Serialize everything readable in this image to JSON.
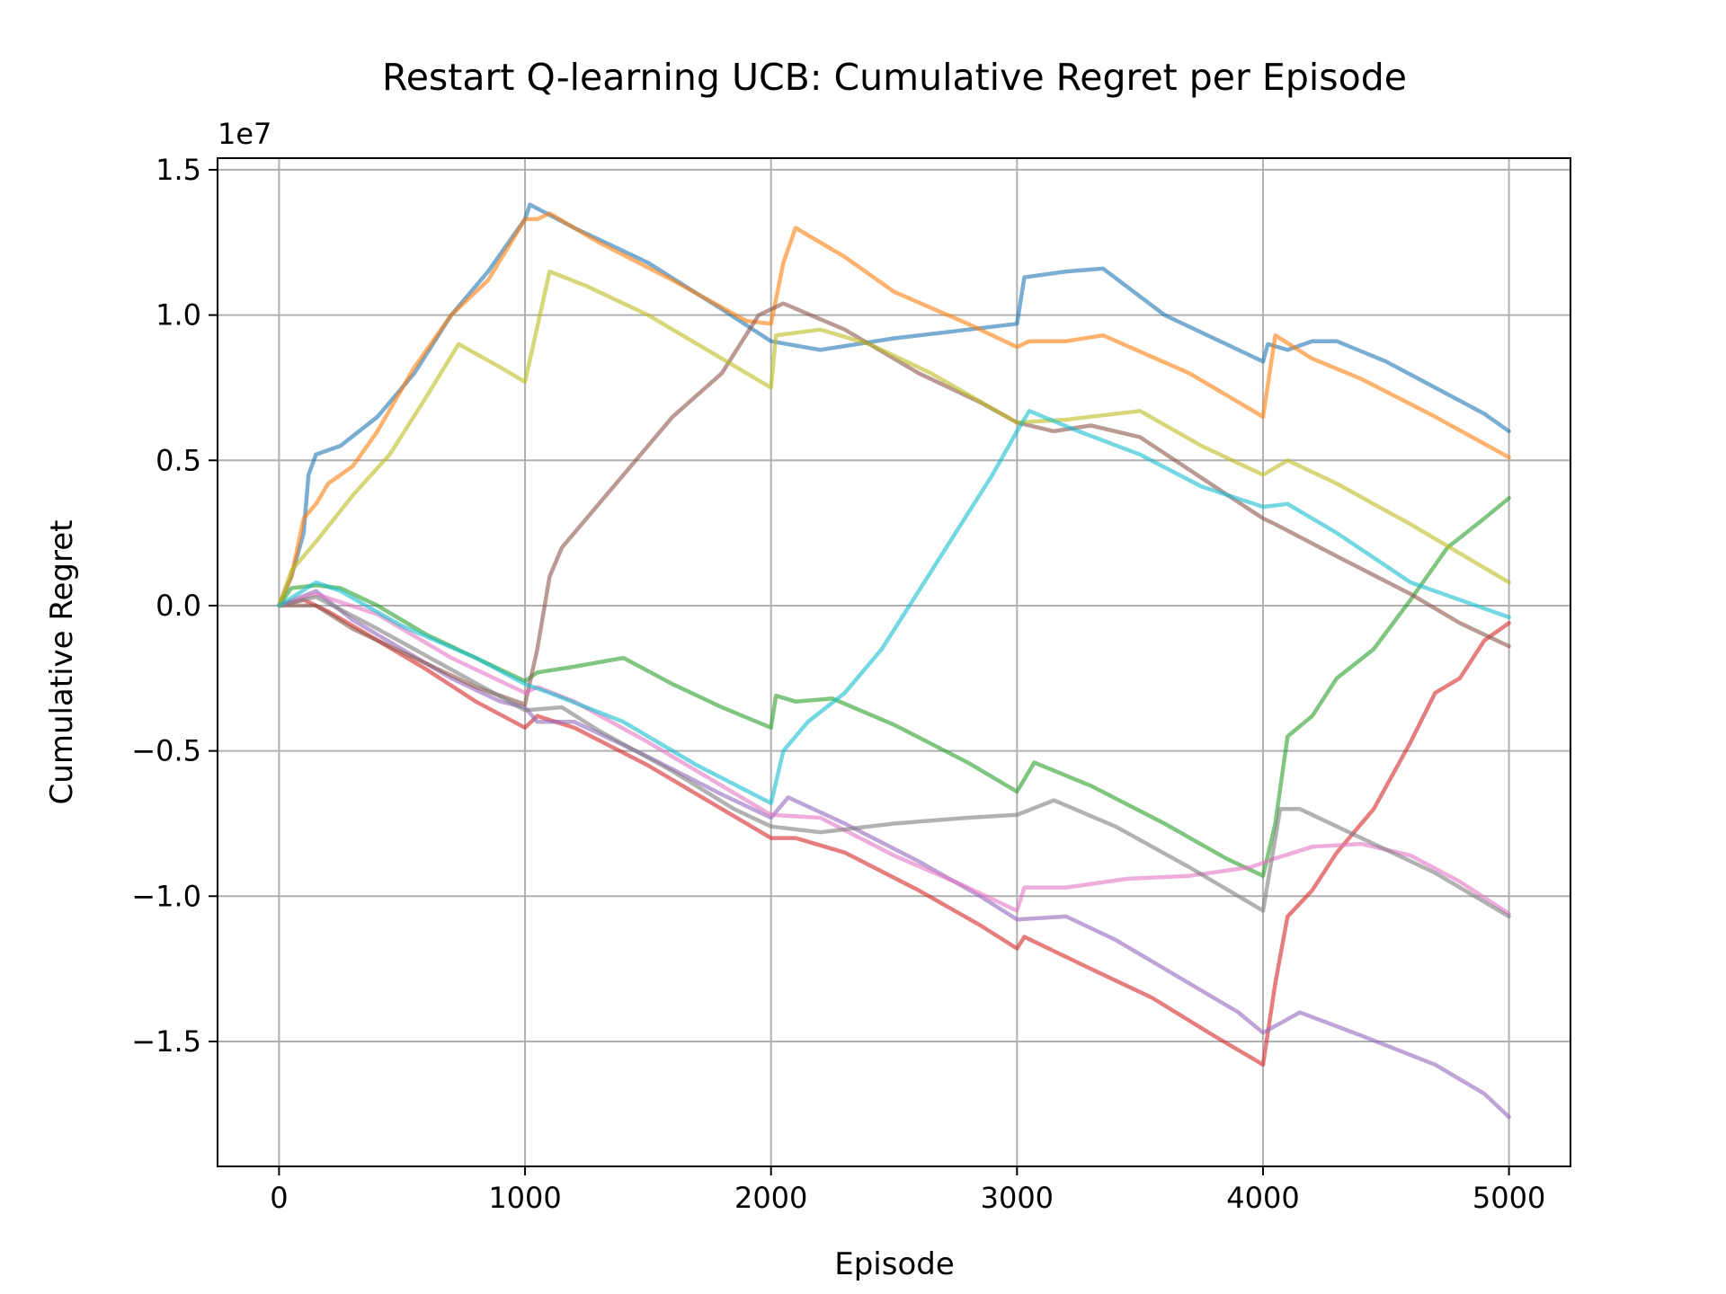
{
  "chart_data": {
    "type": "line",
    "title": "Restart Q-learning UCB: Cumulative Regret per Episode",
    "xlabel": "Episode",
    "ylabel": "Cumulative Regret",
    "y_offset_label": "1e7",
    "xlim": [
      -250,
      5250
    ],
    "ylim": [
      -1.93,
      1.54
    ],
    "y_scale_factor": 10000000,
    "xticks": [
      0,
      1000,
      2000,
      3000,
      4000,
      5000
    ],
    "xtick_labels": [
      "0",
      "1000",
      "2000",
      "3000",
      "4000",
      "5000"
    ],
    "yticks": [
      1.5,
      1.0,
      0.5,
      0.0,
      -0.5,
      -1.0,
      -1.5
    ],
    "ytick_labels": [
      "1.5",
      "1.0",
      "0.5",
      "0.0",
      "−0.5",
      "−1.0",
      "−1.5"
    ],
    "grid": true,
    "legend": "none",
    "series": [
      {
        "color": "#1f77b4",
        "points": [
          [
            0,
            0.0
          ],
          [
            50,
            0.1
          ],
          [
            100,
            0.25
          ],
          [
            120,
            0.45
          ],
          [
            150,
            0.52
          ],
          [
            250,
            0.55
          ],
          [
            400,
            0.65
          ],
          [
            550,
            0.8
          ],
          [
            700,
            1.0
          ],
          [
            850,
            1.15
          ],
          [
            1000,
            1.33
          ],
          [
            1020,
            1.38
          ],
          [
            1200,
            1.3
          ],
          [
            1500,
            1.18
          ],
          [
            1800,
            1.02
          ],
          [
            2000,
            0.91
          ],
          [
            2200,
            0.88
          ],
          [
            2500,
            0.92
          ],
          [
            2800,
            0.95
          ],
          [
            3000,
            0.97
          ],
          [
            3030,
            1.13
          ],
          [
            3200,
            1.15
          ],
          [
            3350,
            1.16
          ],
          [
            3600,
            1.0
          ],
          [
            3850,
            0.9
          ],
          [
            4000,
            0.84
          ],
          [
            4020,
            0.9
          ],
          [
            4100,
            0.88
          ],
          [
            4200,
            0.91
          ],
          [
            4300,
            0.91
          ],
          [
            4500,
            0.84
          ],
          [
            4700,
            0.75
          ],
          [
            4900,
            0.66
          ],
          [
            5000,
            0.6
          ]
        ]
      },
      {
        "color": "#ff7f0e",
        "points": [
          [
            0,
            0.0
          ],
          [
            50,
            0.1
          ],
          [
            100,
            0.3
          ],
          [
            150,
            0.35
          ],
          [
            200,
            0.42
          ],
          [
            300,
            0.48
          ],
          [
            400,
            0.6
          ],
          [
            550,
            0.82
          ],
          [
            700,
            1.0
          ],
          [
            850,
            1.12
          ],
          [
            1000,
            1.33
          ],
          [
            1050,
            1.33
          ],
          [
            1100,
            1.35
          ],
          [
            1300,
            1.25
          ],
          [
            1600,
            1.12
          ],
          [
            1900,
            0.98
          ],
          [
            2000,
            0.97
          ],
          [
            2050,
            1.18
          ],
          [
            2100,
            1.3
          ],
          [
            2300,
            1.2
          ],
          [
            2500,
            1.08
          ],
          [
            2800,
            0.97
          ],
          [
            3000,
            0.89
          ],
          [
            3050,
            0.91
          ],
          [
            3200,
            0.91
          ],
          [
            3350,
            0.93
          ],
          [
            3700,
            0.8
          ],
          [
            4000,
            0.65
          ],
          [
            4050,
            0.93
          ],
          [
            4200,
            0.85
          ],
          [
            4400,
            0.78
          ],
          [
            4700,
            0.65
          ],
          [
            5000,
            0.51
          ]
        ]
      },
      {
        "color": "#2ca02c",
        "points": [
          [
            0,
            0.0
          ],
          [
            50,
            0.06
          ],
          [
            150,
            0.07
          ],
          [
            250,
            0.06
          ],
          [
            400,
            0.0
          ],
          [
            600,
            -0.1
          ],
          [
            800,
            -0.18
          ],
          [
            1000,
            -0.26
          ],
          [
            1050,
            -0.23
          ],
          [
            1200,
            -0.21
          ],
          [
            1400,
            -0.18
          ],
          [
            1600,
            -0.27
          ],
          [
            1800,
            -0.35
          ],
          [
            2000,
            -0.42
          ],
          [
            2020,
            -0.31
          ],
          [
            2100,
            -0.33
          ],
          [
            2250,
            -0.32
          ],
          [
            2500,
            -0.41
          ],
          [
            2800,
            -0.54
          ],
          [
            3000,
            -0.64
          ],
          [
            3070,
            -0.54
          ],
          [
            3300,
            -0.62
          ],
          [
            3600,
            -0.75
          ],
          [
            3850,
            -0.87
          ],
          [
            4000,
            -0.93
          ],
          [
            4050,
            -0.75
          ],
          [
            4100,
            -0.45
          ],
          [
            4200,
            -0.38
          ],
          [
            4300,
            -0.25
          ],
          [
            4450,
            -0.15
          ],
          [
            4600,
            0.02
          ],
          [
            4750,
            0.2
          ],
          [
            4900,
            0.3
          ],
          [
            5000,
            0.37
          ]
        ]
      },
      {
        "color": "#d62728",
        "points": [
          [
            0,
            0.0
          ],
          [
            100,
            0.02
          ],
          [
            200,
            -0.02
          ],
          [
            400,
            -0.12
          ],
          [
            600,
            -0.22
          ],
          [
            800,
            -0.33
          ],
          [
            1000,
            -0.42
          ],
          [
            1050,
            -0.38
          ],
          [
            1200,
            -0.42
          ],
          [
            1500,
            -0.55
          ],
          [
            1800,
            -0.7
          ],
          [
            2000,
            -0.8
          ],
          [
            2100,
            -0.8
          ],
          [
            2300,
            -0.85
          ],
          [
            2600,
            -0.98
          ],
          [
            2850,
            -1.1
          ],
          [
            3000,
            -1.18
          ],
          [
            3030,
            -1.14
          ],
          [
            3300,
            -1.25
          ],
          [
            3550,
            -1.35
          ],
          [
            3800,
            -1.48
          ],
          [
            4000,
            -1.58
          ],
          [
            4050,
            -1.3
          ],
          [
            4100,
            -1.07
          ],
          [
            4200,
            -0.98
          ],
          [
            4300,
            -0.85
          ],
          [
            4450,
            -0.7
          ],
          [
            4600,
            -0.47
          ],
          [
            4700,
            -0.3
          ],
          [
            4800,
            -0.25
          ],
          [
            4900,
            -0.12
          ],
          [
            5000,
            -0.06
          ]
        ]
      },
      {
        "color": "#9467bd",
        "points": [
          [
            0,
            0.0
          ],
          [
            150,
            0.05
          ],
          [
            300,
            -0.05
          ],
          [
            500,
            -0.15
          ],
          [
            700,
            -0.25
          ],
          [
            900,
            -0.33
          ],
          [
            1000,
            -0.35
          ],
          [
            1050,
            -0.4
          ],
          [
            1200,
            -0.4
          ],
          [
            1500,
            -0.52
          ],
          [
            1800,
            -0.65
          ],
          [
            2000,
            -0.73
          ],
          [
            2070,
            -0.66
          ],
          [
            2300,
            -0.75
          ],
          [
            2600,
            -0.88
          ],
          [
            2850,
            -1.0
          ],
          [
            3000,
            -1.08
          ],
          [
            3200,
            -1.07
          ],
          [
            3400,
            -1.15
          ],
          [
            3700,
            -1.3
          ],
          [
            3900,
            -1.4
          ],
          [
            4000,
            -1.47
          ],
          [
            4150,
            -1.4
          ],
          [
            4400,
            -1.48
          ],
          [
            4700,
            -1.58
          ],
          [
            4900,
            -1.68
          ],
          [
            5000,
            -1.76
          ]
        ]
      },
      {
        "color": "#8c564b",
        "points": [
          [
            0,
            0.0
          ],
          [
            150,
            0.0
          ],
          [
            300,
            -0.08
          ],
          [
            550,
            -0.18
          ],
          [
            800,
            -0.28
          ],
          [
            1000,
            -0.34
          ],
          [
            1050,
            -0.15
          ],
          [
            1100,
            0.1
          ],
          [
            1150,
            0.2
          ],
          [
            1300,
            0.35
          ],
          [
            1450,
            0.5
          ],
          [
            1600,
            0.65
          ],
          [
            1800,
            0.8
          ],
          [
            1950,
            1.0
          ],
          [
            2050,
            1.04
          ],
          [
            2300,
            0.95
          ],
          [
            2600,
            0.8
          ],
          [
            2850,
            0.7
          ],
          [
            3000,
            0.63
          ],
          [
            3150,
            0.6
          ],
          [
            3300,
            0.62
          ],
          [
            3500,
            0.58
          ],
          [
            3750,
            0.44
          ],
          [
            4000,
            0.3
          ],
          [
            4050,
            0.28
          ],
          [
            4300,
            0.17
          ],
          [
            4600,
            0.04
          ],
          [
            4800,
            -0.06
          ],
          [
            5000,
            -0.14
          ]
        ]
      },
      {
        "color": "#e377c2",
        "points": [
          [
            0,
            0.0
          ],
          [
            150,
            0.04
          ],
          [
            400,
            -0.03
          ],
          [
            700,
            -0.18
          ],
          [
            1000,
            -0.3
          ],
          [
            1050,
            -0.28
          ],
          [
            1200,
            -0.33
          ],
          [
            1500,
            -0.47
          ],
          [
            1800,
            -0.62
          ],
          [
            2000,
            -0.72
          ],
          [
            2200,
            -0.73
          ],
          [
            2500,
            -0.86
          ],
          [
            2800,
            -0.97
          ],
          [
            3000,
            -1.05
          ],
          [
            3030,
            -0.97
          ],
          [
            3200,
            -0.97
          ],
          [
            3450,
            -0.94
          ],
          [
            3700,
            -0.93
          ],
          [
            3950,
            -0.9
          ],
          [
            4050,
            -0.87
          ],
          [
            4200,
            -0.83
          ],
          [
            4400,
            -0.82
          ],
          [
            4600,
            -0.86
          ],
          [
            4800,
            -0.95
          ],
          [
            5000,
            -1.06
          ]
        ]
      },
      {
        "color": "#7f7f7f",
        "points": [
          [
            0,
            0.0
          ],
          [
            150,
            0.03
          ],
          [
            400,
            -0.08
          ],
          [
            700,
            -0.22
          ],
          [
            1000,
            -0.36
          ],
          [
            1150,
            -0.35
          ],
          [
            1300,
            -0.43
          ],
          [
            1600,
            -0.57
          ],
          [
            1850,
            -0.7
          ],
          [
            2000,
            -0.76
          ],
          [
            2200,
            -0.78
          ],
          [
            2500,
            -0.75
          ],
          [
            2800,
            -0.73
          ],
          [
            3000,
            -0.72
          ],
          [
            3150,
            -0.67
          ],
          [
            3400,
            -0.76
          ],
          [
            3700,
            -0.9
          ],
          [
            4000,
            -1.05
          ],
          [
            4070,
            -0.7
          ],
          [
            4150,
            -0.7
          ],
          [
            4400,
            -0.8
          ],
          [
            4700,
            -0.92
          ],
          [
            5000,
            -1.07
          ]
        ]
      },
      {
        "color": "#bcbd22",
        "points": [
          [
            0,
            0.0
          ],
          [
            50,
            0.12
          ],
          [
            150,
            0.22
          ],
          [
            300,
            0.38
          ],
          [
            450,
            0.52
          ],
          [
            600,
            0.72
          ],
          [
            730,
            0.9
          ],
          [
            900,
            0.82
          ],
          [
            1000,
            0.77
          ],
          [
            1100,
            1.15
          ],
          [
            1250,
            1.1
          ],
          [
            1500,
            1.0
          ],
          [
            1800,
            0.85
          ],
          [
            2000,
            0.75
          ],
          [
            2020,
            0.93
          ],
          [
            2200,
            0.95
          ],
          [
            2400,
            0.9
          ],
          [
            2650,
            0.8
          ],
          [
            3000,
            0.63
          ],
          [
            3200,
            0.64
          ],
          [
            3500,
            0.67
          ],
          [
            3750,
            0.55
          ],
          [
            4000,
            0.45
          ],
          [
            4100,
            0.5
          ],
          [
            4300,
            0.42
          ],
          [
            4600,
            0.28
          ],
          [
            5000,
            0.08
          ]
        ]
      },
      {
        "color": "#17becf",
        "points": [
          [
            0,
            0.0
          ],
          [
            150,
            0.08
          ],
          [
            250,
            0.05
          ],
          [
            500,
            -0.07
          ],
          [
            800,
            -0.18
          ],
          [
            1000,
            -0.27
          ],
          [
            1100,
            -0.3
          ],
          [
            1400,
            -0.4
          ],
          [
            1700,
            -0.55
          ],
          [
            2000,
            -0.68
          ],
          [
            2050,
            -0.5
          ],
          [
            2150,
            -0.4
          ],
          [
            2300,
            -0.3
          ],
          [
            2450,
            -0.15
          ],
          [
            2600,
            0.05
          ],
          [
            2750,
            0.25
          ],
          [
            2900,
            0.45
          ],
          [
            3000,
            0.6
          ],
          [
            3050,
            0.67
          ],
          [
            3250,
            0.6
          ],
          [
            3500,
            0.52
          ],
          [
            3750,
            0.41
          ],
          [
            4000,
            0.34
          ],
          [
            4100,
            0.35
          ],
          [
            4300,
            0.25
          ],
          [
            4600,
            0.08
          ],
          [
            5000,
            -0.04
          ]
        ]
      }
    ]
  }
}
